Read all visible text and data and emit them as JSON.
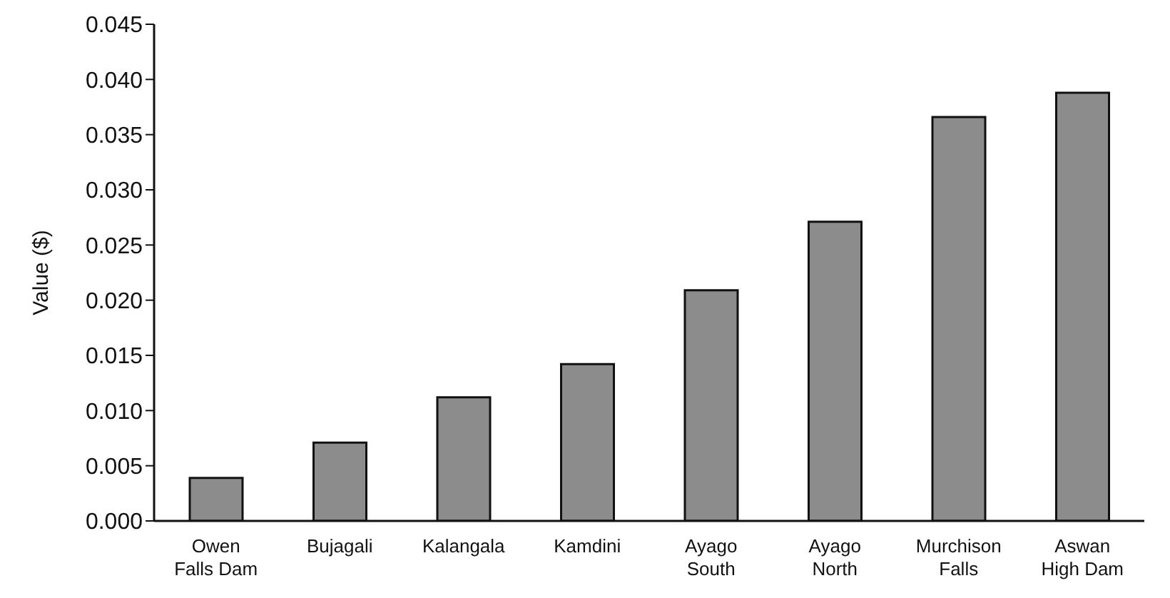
{
  "chart_data": {
    "type": "bar",
    "ylabel": "Value ($)",
    "categories": [
      "Owen Falls Dam",
      "Bujagali",
      "Kalangala",
      "Kamdini",
      "Ayago South",
      "Ayago North",
      "Murchison Falls",
      "Aswan High Dam"
    ],
    "values": [
      0.0039,
      0.0071,
      0.0112,
      0.0142,
      0.0209,
      0.0271,
      0.0366,
      0.0388
    ],
    "color": "#8c8c8c",
    "ylim": [
      0,
      0.045
    ],
    "yticks": [
      {
        "value": 0,
        "label": "0.000"
      },
      {
        "value": 0.005,
        "label": "0.005"
      },
      {
        "value": 0.01,
        "label": "0.010"
      },
      {
        "value": 0.015,
        "label": "0.015"
      },
      {
        "value": 0.02,
        "label": "0.020"
      },
      {
        "value": 0.025,
        "label": "0.025"
      },
      {
        "value": 0.03,
        "label": "0.030"
      },
      {
        "value": 0.035,
        "label": "0.035"
      },
      {
        "value": 0.04,
        "label": "0.040"
      },
      {
        "value": 0.045,
        "label": "0.045"
      }
    ],
    "grid": false,
    "legend": false
  }
}
